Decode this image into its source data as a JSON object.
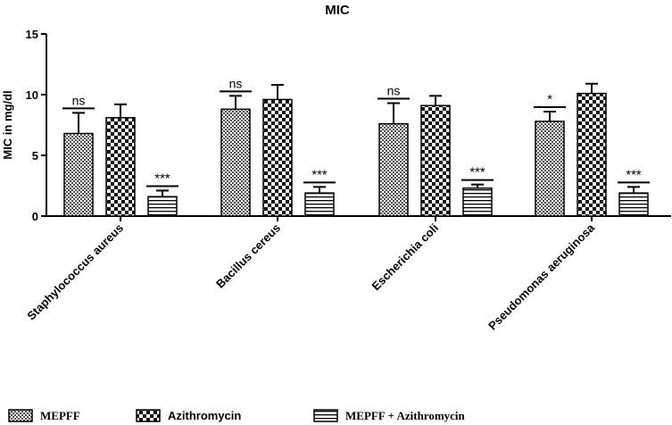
{
  "chart_data": {
    "type": "bar",
    "title": "MIC",
    "ylabel": "MIC in mg/dl",
    "xlabel": "",
    "ylim": [
      0,
      15
    ],
    "yticks": [
      0,
      5,
      10,
      15
    ],
    "categories": [
      "Staphylococcus aureus",
      "Bacillus cereus",
      "Escherichia coli",
      "Pseudomonas aeruginosa"
    ],
    "series": [
      {
        "name": "MEPFF",
        "pattern": "checker-small",
        "values": [
          6.8,
          8.8,
          7.6,
          7.8
        ],
        "errors": [
          1.7,
          1.1,
          1.7,
          0.8
        ]
      },
      {
        "name": "Azithromycin",
        "pattern": "checker-large",
        "values": [
          8.1,
          9.6,
          9.1,
          10.1
        ],
        "errors": [
          1.1,
          1.2,
          0.8,
          0.8
        ]
      },
      {
        "name": "MEPFF + Azithromycin",
        "pattern": "horizontal-lines",
        "values": [
          1.6,
          1.9,
          2.3,
          1.9
        ],
        "errors": [
          0.5,
          0.5,
          0.3,
          0.5
        ]
      }
    ],
    "significance": [
      [
        "ns",
        "",
        "***"
      ],
      [
        "ns",
        "",
        "***"
      ],
      [
        "ns",
        "",
        "***"
      ],
      [
        "*",
        "",
        "***"
      ]
    ],
    "grid": false,
    "legend_position": "bottom"
  }
}
